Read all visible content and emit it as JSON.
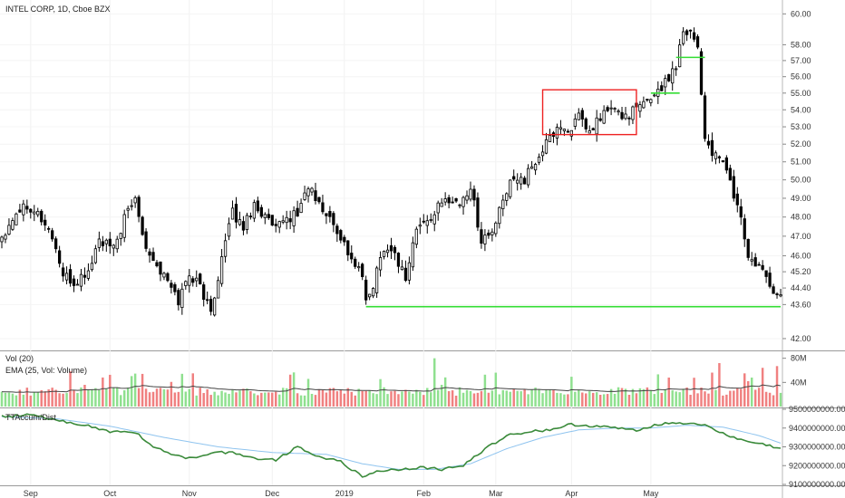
{
  "header": {
    "symbol_label": "INTEL CORP, 1D, Cboe BZX"
  },
  "colors": {
    "up_candle_fill": "#ffffff",
    "down_candle_fill": "#000000",
    "support_line": "#33dd33",
    "highlight_box": "#ee2222",
    "volume_up": "#8fe08f",
    "volume_down": "#f08080",
    "ema_line": "#444444",
    "accum_line": "#3a8a3a",
    "accum_ma_line": "#8fc4ef"
  },
  "chart_data": [
    {
      "type": "candlestick",
      "title": "INTEL CORP, 1D, Cboe BZX",
      "ylim": [
        41.5,
        60.8
      ],
      "y_scale": "log",
      "y_ticks": [
        "60.00",
        "58.00",
        "57.00",
        "56.00",
        "55.00",
        "54.00",
        "53.00",
        "52.00",
        "51.00",
        "50.00",
        "49.00",
        "48.00",
        "47.00",
        "46.00",
        "45.20",
        "44.40",
        "43.60",
        "42.00"
      ],
      "x_ticks": [
        "Sep",
        "Oct",
        "Nov",
        "Dec",
        "2019",
        "Feb",
        "Mar",
        "Apr",
        "May"
      ],
      "close_path": [
        [
          0,
          47.0
        ],
        [
          4,
          48.3
        ],
        [
          7,
          48.7
        ],
        [
          10,
          48.2
        ],
        [
          14,
          47.0
        ],
        [
          17,
          45.0
        ],
        [
          20,
          44.6
        ],
        [
          24,
          45.2
        ],
        [
          27,
          46.8
        ],
        [
          31,
          46.3
        ],
        [
          34,
          47.9
        ],
        [
          37,
          49.0
        ],
        [
          40,
          46.5
        ],
        [
          43,
          45.5
        ],
        [
          46,
          44.7
        ],
        [
          49,
          43.8
        ],
        [
          52,
          45.1
        ],
        [
          55,
          44.5
        ],
        [
          58,
          43.2
        ],
        [
          61,
          45.9
        ],
        [
          64,
          48.2
        ],
        [
          67,
          47.5
        ],
        [
          70,
          48.7
        ],
        [
          73,
          48.0
        ],
        [
          76,
          47.3
        ],
        [
          79,
          47.9
        ],
        [
          82,
          48.2
        ],
        [
          85,
          49.7
        ],
        [
          88,
          48.6
        ],
        [
          91,
          47.9
        ],
        [
          94,
          47.0
        ],
        [
          97,
          45.8
        ],
        [
          100,
          45.0
        ],
        [
          101,
          43.6
        ],
        [
          103,
          44.6
        ],
        [
          106,
          46.5
        ],
        [
          109,
          46.1
        ],
        [
          112,
          44.9
        ],
        [
          115,
          47.4
        ],
        [
          118,
          47.8
        ],
        [
          121,
          48.5
        ],
        [
          124,
          49.0
        ],
        [
          127,
          48.7
        ],
        [
          130,
          49.6
        ],
        [
          133,
          46.8
        ],
        [
          136,
          47.2
        ],
        [
          139,
          48.8
        ],
        [
          142,
          50.3
        ],
        [
          145,
          50.0
        ],
        [
          148,
          51.0
        ],
        [
          151,
          52.0
        ],
        [
          154,
          53.0
        ],
        [
          157,
          52.8
        ],
        [
          160,
          53.5
        ],
        [
          163,
          52.6
        ],
        [
          166,
          53.6
        ],
        [
          169,
          54.1
        ],
        [
          172,
          53.6
        ],
        [
          175,
          53.9
        ],
        [
          178,
          54.3
        ],
        [
          181,
          55.0
        ],
        [
          184,
          55.6
        ],
        [
          187,
          56.8
        ],
        [
          189,
          59.0
        ],
        [
          191,
          58.9
        ],
        [
          193,
          57.9
        ],
        [
          195,
          52.3
        ],
        [
          198,
          51.2
        ],
        [
          201,
          50.7
        ],
        [
          203,
          49.1
        ],
        [
          205,
          48.0
        ],
        [
          207,
          45.8
        ],
        [
          210,
          45.4
        ],
        [
          213,
          44.6
        ],
        [
          215,
          44.0
        ]
      ],
      "annotations": [
        {
          "kind": "horizontal-line",
          "y": 43.5,
          "x_range": [
            101,
            216
          ]
        },
        {
          "kind": "horizontal-line",
          "y": 55.0,
          "x_range": [
            180,
            188
          ]
        },
        {
          "kind": "horizontal-line",
          "y": 57.2,
          "x_range": [
            187,
            195
          ]
        },
        {
          "kind": "rectangle",
          "x_range": [
            150,
            176
          ],
          "y_range": [
            52.55,
            55.2
          ]
        }
      ]
    },
    {
      "type": "bar",
      "title": "Vol (20)",
      "subtitle": "EMA (25, Vol: Volume)",
      "y_ticks": [
        "80M",
        "40M"
      ],
      "ylim": [
        0,
        90
      ],
      "units": "millions of shares (approx.)"
    },
    {
      "type": "line",
      "title": "TTAccum/Dist",
      "y_ticks": [
        "9500000000.00",
        "9400000000.00",
        "9300000000.00",
        "9200000000.00",
        "9100000000.00"
      ],
      "ylim": [
        9100000000,
        9500000000
      ],
      "series_path": [
        [
          0,
          9460
        ],
        [
          8,
          9470
        ],
        [
          15,
          9440
        ],
        [
          22,
          9420
        ],
        [
          30,
          9380
        ],
        [
          37,
          9380
        ],
        [
          42,
          9300
        ],
        [
          48,
          9250
        ],
        [
          53,
          9240
        ],
        [
          58,
          9270
        ],
        [
          64,
          9270
        ],
        [
          70,
          9240
        ],
        [
          76,
          9230
        ],
        [
          82,
          9300
        ],
        [
          88,
          9250
        ],
        [
          94,
          9220
        ],
        [
          100,
          9140
        ],
        [
          104,
          9170
        ],
        [
          110,
          9180
        ],
        [
          116,
          9190
        ],
        [
          122,
          9180
        ],
        [
          128,
          9200
        ],
        [
          134,
          9290
        ],
        [
          140,
          9360
        ],
        [
          146,
          9380
        ],
        [
          152,
          9390
        ],
        [
          158,
          9420
        ],
        [
          164,
          9410
        ],
        [
          170,
          9400
        ],
        [
          176,
          9390
        ],
        [
          182,
          9420
        ],
        [
          188,
          9430
        ],
        [
          194,
          9420
        ],
        [
          200,
          9370
        ],
        [
          206,
          9330
        ],
        [
          212,
          9310
        ],
        [
          216,
          9290
        ]
      ],
      "ma_path": [
        [
          0,
          9460
        ],
        [
          15,
          9450
        ],
        [
          30,
          9410
        ],
        [
          45,
          9350
        ],
        [
          60,
          9300
        ],
        [
          75,
          9270
        ],
        [
          90,
          9260
        ],
        [
          100,
          9210
        ],
        [
          110,
          9180
        ],
        [
          120,
          9180
        ],
        [
          130,
          9210
        ],
        [
          140,
          9290
        ],
        [
          150,
          9350
        ],
        [
          160,
          9390
        ],
        [
          170,
          9400
        ],
        [
          180,
          9400
        ],
        [
          190,
          9415
        ],
        [
          200,
          9405
        ],
        [
          210,
          9360
        ],
        [
          216,
          9320
        ]
      ]
    }
  ]
}
